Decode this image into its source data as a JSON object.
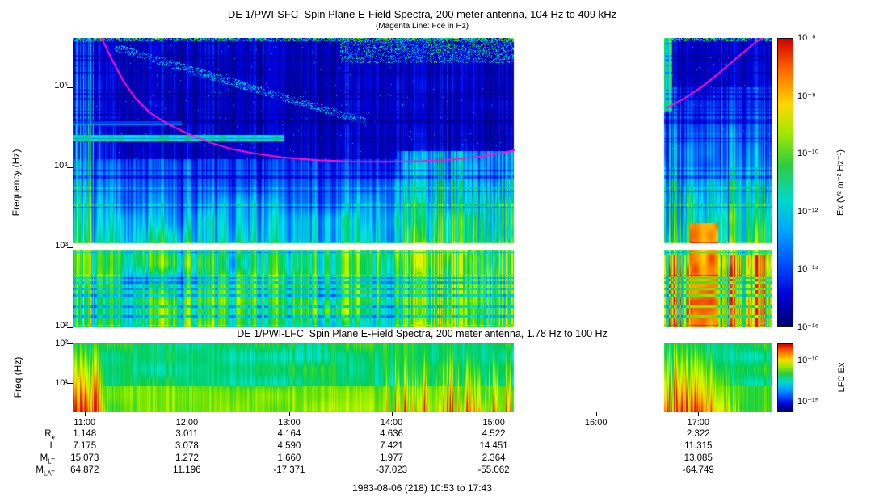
{
  "header": {
    "title": "DE 1/PWI-SFC  Spin Plane E-Field Spectra, 200 meter antenna, 104 Hz to 409 kHz",
    "subtitle": "(Magenta Line: Fce in Hz)"
  },
  "footer": "1983-08-06 (218) 10:53 to 17:43",
  "chart_data": [
    {
      "type": "heatmap",
      "name": "sfc-spectrogram",
      "title": "DE 1/PWI-SFC  Spin Plane E-Field Spectra, 200 meter antenna, 104 Hz to 409 kHz",
      "ylabel": "Frequency (Hz)",
      "ylim_hz": [
        100,
        409000
      ],
      "yticks": [
        "10²",
        "10³",
        "10⁴",
        "10⁵"
      ],
      "ytick_hz": [
        100,
        1000,
        10000,
        100000
      ],
      "time_hours": [
        10.8833,
        17.7167
      ],
      "xticks": [
        "11:00",
        "12:00",
        "13:00",
        "14:00",
        "15:00",
        "16:00",
        "17:00"
      ],
      "xtick_hours": [
        11,
        12,
        13,
        14,
        15,
        16,
        17
      ],
      "colorbar": {
        "label": "Ex (V² m⁻² Hz⁻¹)",
        "ticks": [
          "10⁻⁶",
          "10⁻⁸",
          "10⁻¹⁰",
          "10⁻¹²",
          "10⁻¹⁴",
          "10⁻¹⁶"
        ]
      },
      "data_gap_hours": [
        15.2,
        16.6667
      ],
      "white_band_hz": [
        900,
        1120
      ],
      "fce_color": "#ff14cc",
      "fce_segments": [
        [
          [
            0.04,
            430000
          ],
          [
            0.055,
            230000
          ],
          [
            0.072,
            120000
          ],
          [
            0.09,
            72000
          ],
          [
            0.11,
            48000
          ],
          [
            0.135,
            35000
          ],
          [
            0.165,
            26000
          ],
          [
            0.195,
            20500
          ],
          [
            0.225,
            17000
          ],
          [
            0.26,
            14800
          ],
          [
            0.3,
            13200
          ],
          [
            0.35,
            12200
          ],
          [
            0.4,
            11700
          ],
          [
            0.45,
            11600
          ],
          [
            0.5,
            11900
          ],
          [
            0.545,
            12500
          ],
          [
            0.585,
            13600
          ],
          [
            0.615,
            15000
          ],
          [
            0.632,
            16200
          ]
        ],
        [
          [
            0.852,
            56000
          ],
          [
            0.875,
            72000
          ],
          [
            0.9,
            100000
          ],
          [
            0.925,
            150000
          ],
          [
            0.95,
            230000
          ],
          [
            0.975,
            350000
          ],
          [
            0.99,
            430000
          ]
        ]
      ],
      "features": [
        "broadband bursts 10:53-11:30 reaching above 100 kHz",
        "intense emission below ~12 kHz from ~14:00 to 15:12",
        "data gap (white) from ~15:12 to ~16:40",
        "intense low-frequency emission after the gap near 16:45-17:15",
        "white horizontal instrument stripe near 1 kHz",
        "magenta electron cyclotron frequency (Fce) trace"
      ]
    },
    {
      "type": "heatmap",
      "name": "lfc-spectrogram",
      "title": "DE 1/PWI-LFC  Spin Plane E-Field Spectra, 200 meter antenna, 1.78 Hz to 100 Hz",
      "ylabel": "Freq (Hz)",
      "ylim_hz": [
        1.78,
        100
      ],
      "yticks": [
        "10¹",
        "10²"
      ],
      "ytick_hz": [
        10,
        100
      ],
      "colorbar": {
        "label": "LFC Ex",
        "ticks": [
          "10⁻¹⁰",
          "10⁻¹⁵"
        ]
      },
      "features": [
        "mostly green background",
        "red/orange bursts near 11:00, 14:00-15:12 and after 16:40",
        "same data gap as SFC panel"
      ]
    }
  ],
  "ephemeris": {
    "row_labels": [
      {
        "base": "R",
        "sub": "e"
      },
      {
        "base": "L",
        "sub": ""
      },
      {
        "base": "M",
        "sub": "LT"
      },
      {
        "base": "M",
        "sub": "LAT"
      }
    ],
    "rows": [
      [
        "1.148",
        "3.011",
        "4.164",
        "4.636",
        "4.522",
        "",
        "2.322"
      ],
      [
        "7.175",
        "3.078",
        "4.590",
        "7.421",
        "14.451",
        "",
        "11.315"
      ],
      [
        "15.073",
        "1.272",
        "1.660",
        "1.977",
        "2.364",
        "",
        "13.085"
      ],
      [
        "64.872",
        "11.196",
        "-17.371",
        "-37.023",
        "-55.062",
        "",
        "-64.749"
      ]
    ]
  }
}
